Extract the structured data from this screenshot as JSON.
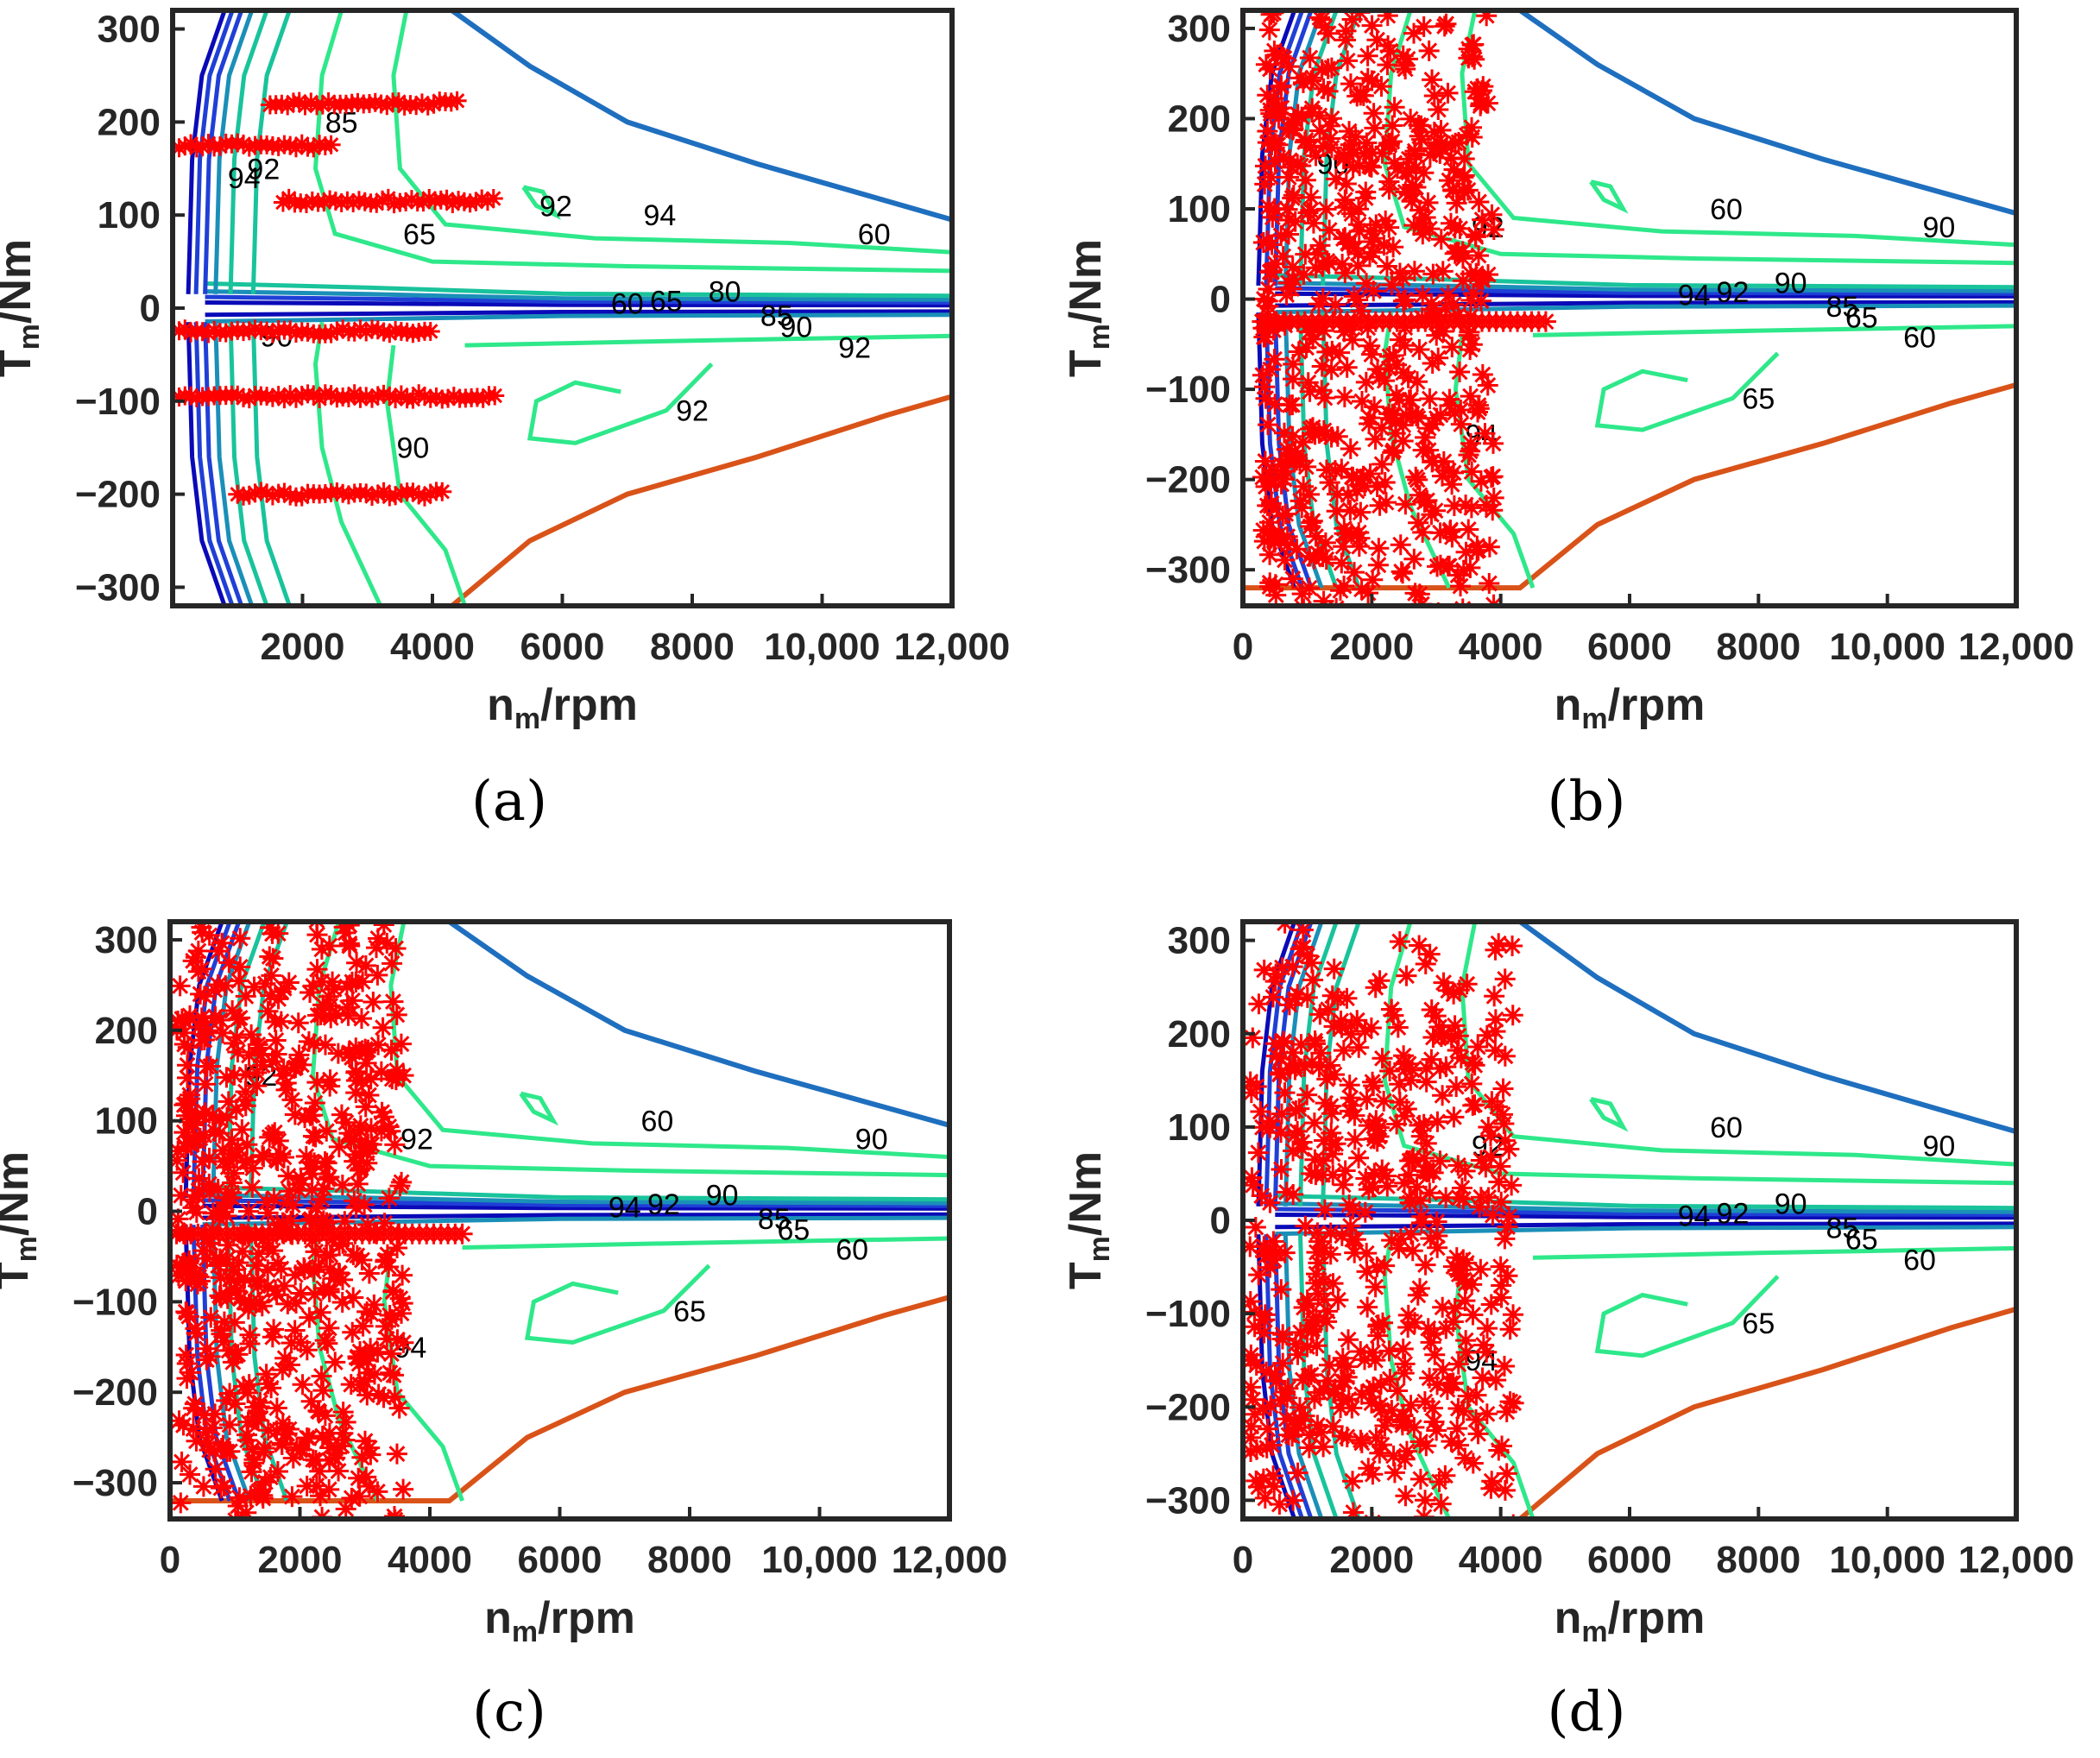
{
  "chart_data": [
    {
      "type": "scatter",
      "panel": "(a)",
      "xlabel": {
        "main": "n",
        "sub": "m",
        "rest": "/rpm"
      },
      "ylabel": {
        "main": "T",
        "sub": "m",
        "rest": "/Nm"
      },
      "xlim": [
        0,
        12000
      ],
      "ylim": [
        -320,
        320
      ],
      "xticks": [
        2000,
        4000,
        6000,
        8000,
        10000,
        12000
      ],
      "xtick_labels": [
        "2000",
        "4000",
        "6000",
        "8000",
        "10,000",
        "12,000"
      ],
      "yticks": [
        300,
        200,
        100,
        0,
        -100,
        -200,
        -300
      ],
      "ytick_labels": [
        "300",
        "200",
        "100",
        "0",
        "−100",
        "−200",
        "−300"
      ],
      "contour_labels": [
        "60",
        "65",
        "80",
        "85",
        "90",
        "92",
        "94",
        "92",
        "60",
        "65",
        "90",
        "92",
        "94",
        "92",
        "90",
        "85"
      ],
      "scatter_style": "row-bands",
      "seed": 11
    },
    {
      "type": "scatter",
      "panel": "(b)",
      "xlabel": {
        "main": "n",
        "sub": "m",
        "rest": "/rpm"
      },
      "ylabel": {
        "main": "T",
        "sub": "m",
        "rest": "/Nm"
      },
      "xlim": [
        0,
        12000
      ],
      "ylim": [
        -340,
        320
      ],
      "xticks": [
        0,
        2000,
        4000,
        6000,
        8000,
        10000,
        12000
      ],
      "xtick_labels": [
        "0",
        "2000",
        "4000",
        "6000",
        "8000",
        "10,000",
        "12,000"
      ],
      "yticks": [
        300,
        200,
        100,
        0,
        -100,
        -200,
        -300
      ],
      "ytick_labels": [
        "300",
        "200",
        "100",
        "0",
        "−100",
        "−200",
        "−300"
      ],
      "contour_labels": [
        "94",
        "92",
        "90",
        "85",
        "65",
        "60",
        "60",
        "65",
        "90",
        "92",
        "94",
        "90"
      ],
      "scatter_style": "dense-cloud",
      "cloud": {
        "x": [
          300,
          3900
        ],
        "y": [
          -320,
          310
        ],
        "count": 620
      },
      "seed": 23
    },
    {
      "type": "scatter",
      "panel": "(c)",
      "xlabel": {
        "main": "n",
        "sub": "m",
        "rest": "/rpm"
      },
      "ylabel": {
        "main": "T",
        "sub": "m",
        "rest": "/Nm"
      },
      "xlim": [
        0,
        12000
      ],
      "ylim": [
        -340,
        320
      ],
      "xticks": [
        0,
        2000,
        4000,
        6000,
        8000,
        10000,
        12000
      ],
      "xtick_labels": [
        "0",
        "2000",
        "4000",
        "6000",
        "8000",
        "10,000",
        "12,000"
      ],
      "yticks": [
        300,
        200,
        100,
        0,
        -100,
        -200,
        -300
      ],
      "ytick_labels": [
        "300",
        "200",
        "100",
        "0",
        "−100",
        "−200",
        "−300"
      ],
      "contour_labels": [
        "94",
        "92",
        "90",
        "85",
        "65",
        "60",
        "60",
        "65",
        "90",
        "92",
        "94",
        "92"
      ],
      "scatter_style": "dense-cloud",
      "cloud": {
        "x": [
          100,
          3600
        ],
        "y": [
          -330,
          315
        ],
        "count": 640
      },
      "seed": 37
    },
    {
      "type": "scatter",
      "panel": "(d)",
      "xlabel": {
        "main": "n",
        "sub": "m",
        "rest": "/rpm"
      },
      "ylabel": {
        "main": "T",
        "sub": "m",
        "rest": "/Nm"
      },
      "xlim": [
        0,
        12000
      ],
      "ylim": [
        -320,
        320
      ],
      "xticks": [
        0,
        2000,
        4000,
        6000,
        8000,
        10000,
        12000
      ],
      "xtick_labels": [
        "0",
        "2000",
        "4000",
        "6000",
        "8000",
        "10,000",
        "12,000"
      ],
      "yticks": [
        300,
        200,
        100,
        0,
        -100,
        -200,
        -300
      ],
      "ytick_labels": [
        "300",
        "200",
        "100",
        "0",
        "−100",
        "−200",
        "−300"
      ],
      "contour_labels": [
        "94",
        "92",
        "90",
        "85",
        "65",
        "60",
        "60",
        "65",
        "90",
        "92",
        "94"
      ],
      "scatter_style": "sparse-cloud",
      "cloud": {
        "x": [
          100,
          4200
        ],
        "y": [
          -300,
          300
        ],
        "count": 520
      },
      "seed": 53
    }
  ],
  "captions": [
    "(a)",
    "(b)",
    "(c)",
    "(d)"
  ],
  "colors": {
    "axis": "#262626",
    "marker": "#ff0000",
    "torque_limit_top": "#1f6fbf",
    "torque_limit_bottom": "#d95319",
    "contour_light": "#2ee88a",
    "contour_mid": "#19c39b",
    "contour_teal": "#1a8fb8",
    "contour_blue": "#1f3fd6",
    "contour_dark": "#0a0ab8"
  }
}
